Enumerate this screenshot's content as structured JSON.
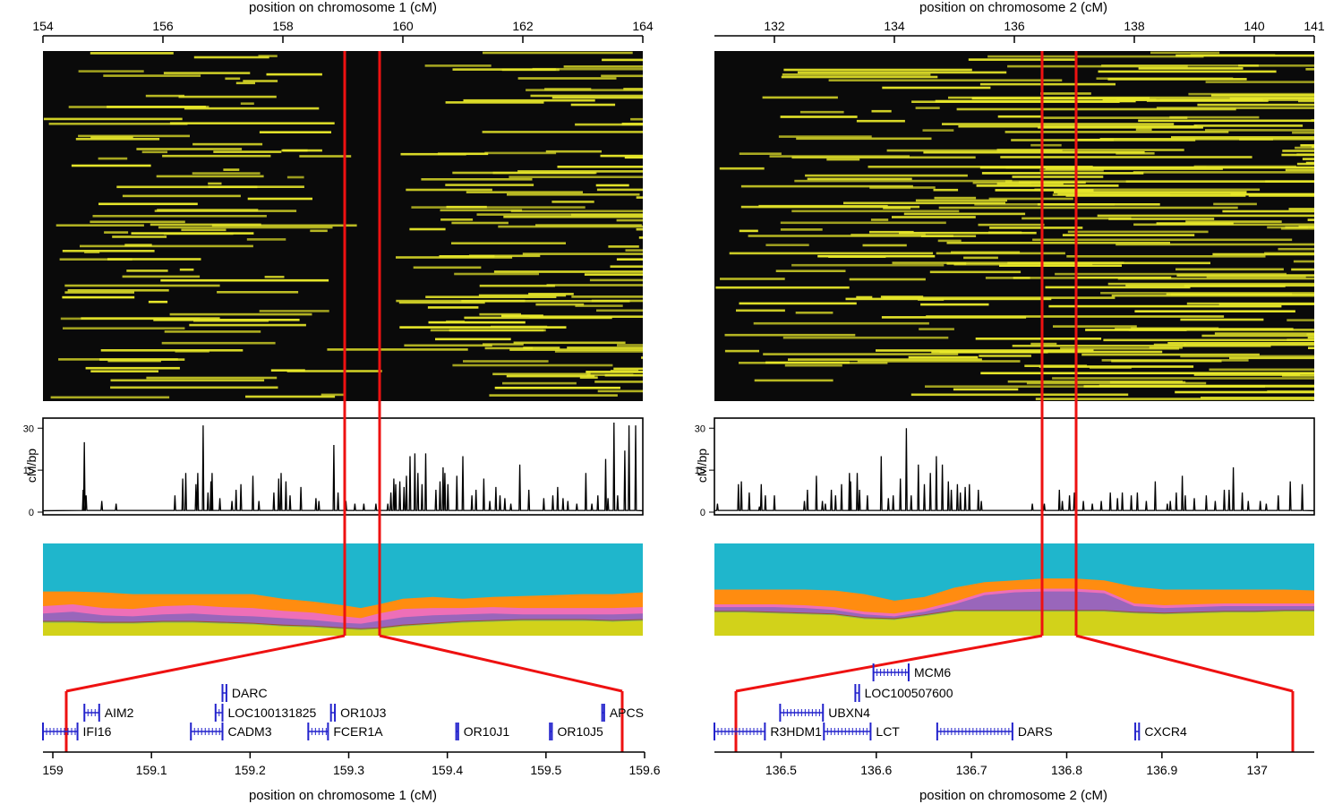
{
  "colors": {
    "heat_bg": "#0a0a0a",
    "heat_yellow": "#e8e82a",
    "density_line": "#000000",
    "zoom_line": "#ee1111",
    "gene": "#2222cc",
    "ancestry": [
      "#d2d21a",
      "#7fbf5a",
      "#a0522d",
      "#9966bb",
      "#ee6fb8",
      "#ff8c10",
      "#1fb6cc"
    ]
  },
  "chart_data": [
    {
      "type": "heatmap",
      "chromosome": 1,
      "top_axis": {
        "label": "position on chromosome 1 (cM)",
        "range": [
          154,
          164
        ],
        "ticks": [
          "154",
          "156",
          "158",
          "160",
          "162",
          "164"
        ]
      },
      "zoom_window_cM": [
        159.0,
        159.6
      ],
      "density": {
        "ylabel": "cM/bp",
        "yticks": [
          "0",
          "15",
          "30"
        ],
        "ylim": [
          0,
          32
        ],
        "peaks": [
          [
            154.67,
            8
          ],
          [
            154.69,
            25
          ],
          [
            154.72,
            6
          ],
          [
            154.98,
            4
          ],
          [
            155.22,
            3
          ],
          [
            156.2,
            6
          ],
          [
            156.33,
            12
          ],
          [
            156.38,
            14
          ],
          [
            156.55,
            10
          ],
          [
            156.58,
            14
          ],
          [
            156.67,
            31
          ],
          [
            156.75,
            7
          ],
          [
            156.8,
            11
          ],
          [
            156.82,
            14
          ],
          [
            156.95,
            5
          ],
          [
            157.15,
            4
          ],
          [
            157.22,
            8
          ],
          [
            157.3,
            10
          ],
          [
            157.5,
            13
          ],
          [
            157.6,
            4
          ],
          [
            157.85,
            7
          ],
          [
            157.93,
            12
          ],
          [
            157.97,
            14
          ],
          [
            158.05,
            11
          ],
          [
            158.12,
            6
          ],
          [
            158.3,
            9
          ],
          [
            158.55,
            5
          ],
          [
            158.6,
            4
          ],
          [
            158.85,
            24
          ],
          [
            158.92,
            7
          ],
          [
            159.05,
            4
          ],
          [
            159.2,
            3
          ],
          [
            159.35,
            3
          ],
          [
            159.55,
            3
          ],
          [
            159.75,
            3
          ],
          [
            159.8,
            7
          ],
          [
            159.85,
            12
          ],
          [
            159.88,
            10
          ],
          [
            159.95,
            11
          ],
          [
            160.02,
            9
          ],
          [
            160.06,
            13
          ],
          [
            160.12,
            20
          ],
          [
            160.2,
            21
          ],
          [
            160.25,
            14
          ],
          [
            160.32,
            10
          ],
          [
            160.38,
            21
          ],
          [
            160.55,
            8
          ],
          [
            160.62,
            11
          ],
          [
            160.67,
            16
          ],
          [
            160.7,
            14
          ],
          [
            160.75,
            10
          ],
          [
            160.9,
            13
          ],
          [
            161.0,
            20
          ],
          [
            161.15,
            6
          ],
          [
            161.22,
            8
          ],
          [
            161.35,
            12
          ],
          [
            161.45,
            4
          ],
          [
            161.55,
            9
          ],
          [
            161.62,
            6
          ],
          [
            161.7,
            5
          ],
          [
            161.8,
            3
          ],
          [
            161.95,
            17
          ],
          [
            162.1,
            8
          ],
          [
            162.35,
            5
          ],
          [
            162.5,
            6
          ],
          [
            162.58,
            9
          ],
          [
            162.67,
            5
          ],
          [
            162.75,
            4
          ],
          [
            162.9,
            3
          ],
          [
            163.05,
            14
          ],
          [
            163.15,
            3
          ],
          [
            163.25,
            6
          ],
          [
            163.38,
            19
          ],
          [
            163.42,
            5
          ],
          [
            163.52,
            32
          ],
          [
            163.58,
            6
          ],
          [
            163.7,
            22
          ],
          [
            163.77,
            31
          ],
          [
            163.88,
            31
          ]
        ]
      },
      "ancestry_boundaries": {
        "x": [
          154,
          154.5,
          155,
          155.5,
          156,
          156.5,
          157,
          157.5,
          158,
          158.5,
          159,
          159.3,
          159.6,
          160,
          160.5,
          161,
          161.5,
          162,
          162.5,
          163,
          163.5,
          164
        ],
        "layers": [
          [
            0.86,
            0.86,
            0.87,
            0.87,
            0.86,
            0.86,
            0.87,
            0.88,
            0.9,
            0.91,
            0.93,
            0.94,
            0.93,
            0.9,
            0.88,
            0.86,
            0.85,
            0.84,
            0.84,
            0.84,
            0.85,
            0.84
          ],
          [
            0.85,
            0.85,
            0.86,
            0.86,
            0.85,
            0.85,
            0.86,
            0.87,
            0.89,
            0.9,
            0.92,
            0.93,
            0.92,
            0.89,
            0.87,
            0.85,
            0.84,
            0.83,
            0.83,
            0.83,
            0.84,
            0.83
          ],
          [
            0.84,
            0.84,
            0.85,
            0.85,
            0.84,
            0.84,
            0.85,
            0.86,
            0.88,
            0.89,
            0.91,
            0.92,
            0.91,
            0.88,
            0.86,
            0.84,
            0.83,
            0.82,
            0.82,
            0.82,
            0.83,
            0.82
          ],
          [
            0.76,
            0.74,
            0.78,
            0.79,
            0.77,
            0.76,
            0.78,
            0.79,
            0.81,
            0.83,
            0.86,
            0.87,
            0.84,
            0.8,
            0.78,
            0.77,
            0.76,
            0.77,
            0.77,
            0.77,
            0.77,
            0.76
          ],
          [
            0.68,
            0.66,
            0.7,
            0.71,
            0.68,
            0.67,
            0.69,
            0.7,
            0.73,
            0.75,
            0.79,
            0.81,
            0.76,
            0.71,
            0.7,
            0.7,
            0.69,
            0.7,
            0.7,
            0.7,
            0.7,
            0.69
          ],
          [
            0.52,
            0.52,
            0.53,
            0.55,
            0.55,
            0.55,
            0.55,
            0.55,
            0.6,
            0.63,
            0.67,
            0.7,
            0.66,
            0.6,
            0.58,
            0.6,
            0.58,
            0.57,
            0.56,
            0.55,
            0.55,
            0.53
          ]
        ]
      },
      "genes": {
        "axis_label": "position on chromosome 1 (cM)",
        "range": [
          158.99,
          159.6
        ],
        "ticks": [
          "159",
          "159.1",
          "159.2",
          "159.3",
          "159.4",
          "159.5",
          "159.6"
        ],
        "items": [
          {
            "name": "DARC",
            "start": 159.172,
            "end": 159.176,
            "row": 0
          },
          {
            "name": "AIM2",
            "start": 159.032,
            "end": 159.047,
            "row": 1
          },
          {
            "name": "LOC100131825",
            "start": 159.165,
            "end": 159.172,
            "row": 1
          },
          {
            "name": "OR10J3",
            "start": 159.282,
            "end": 159.286,
            "row": 1
          },
          {
            "name": "APCS",
            "start": 159.557,
            "end": 159.559,
            "row": 1
          },
          {
            "name": "IFI16",
            "start": 158.99,
            "end": 159.025,
            "row": 2
          },
          {
            "name": "CADM3",
            "start": 159.14,
            "end": 159.172,
            "row": 2
          },
          {
            "name": "FCER1A",
            "start": 159.259,
            "end": 159.279,
            "row": 2
          },
          {
            "name": "OR10J1",
            "start": 159.409,
            "end": 159.411,
            "row": 2
          },
          {
            "name": "OR10J5",
            "start": 159.504,
            "end": 159.506,
            "row": 2
          }
        ]
      }
    },
    {
      "type": "heatmap",
      "chromosome": 2,
      "top_axis": {
        "label": "position on chromosome 2 (cM)",
        "range": [
          131,
          141
        ],
        "ticks": [
          "132",
          "134",
          "136",
          "138",
          "140",
          "141"
        ]
      },
      "zoom_window_cM": [
        136.45,
        137.0
      ],
      "density": {
        "ylabel": "cM/bp",
        "yticks": [
          "0",
          "15",
          "30"
        ],
        "ylim": [
          0,
          32
        ],
        "peaks": [
          [
            131.05,
            3
          ],
          [
            131.4,
            10
          ],
          [
            131.45,
            11
          ],
          [
            131.58,
            7
          ],
          [
            131.75,
            2
          ],
          [
            131.78,
            10
          ],
          [
            131.85,
            6
          ],
          [
            132.0,
            6
          ],
          [
            132.5,
            4
          ],
          [
            132.55,
            8
          ],
          [
            132.7,
            13
          ],
          [
            132.8,
            4
          ],
          [
            132.85,
            3
          ],
          [
            132.95,
            8
          ],
          [
            133.02,
            6
          ],
          [
            133.12,
            10
          ],
          [
            133.25,
            14
          ],
          [
            133.27,
            11
          ],
          [
            133.38,
            14
          ],
          [
            133.42,
            8
          ],
          [
            133.55,
            6
          ],
          [
            133.78,
            20
          ],
          [
            133.9,
            5
          ],
          [
            133.98,
            6
          ],
          [
            134.1,
            12
          ],
          [
            134.2,
            30
          ],
          [
            134.28,
            6
          ],
          [
            134.4,
            17
          ],
          [
            134.5,
            10
          ],
          [
            134.6,
            14
          ],
          [
            134.7,
            20
          ],
          [
            134.8,
            17
          ],
          [
            134.9,
            11
          ],
          [
            134.95,
            8
          ],
          [
            135.05,
            10
          ],
          [
            135.1,
            7
          ],
          [
            135.18,
            9
          ],
          [
            135.25,
            10
          ],
          [
            135.4,
            8
          ],
          [
            135.45,
            4
          ],
          [
            136.3,
            3
          ],
          [
            136.5,
            3
          ],
          [
            136.75,
            8
          ],
          [
            136.8,
            4
          ],
          [
            136.92,
            6
          ],
          [
            137.0,
            7
          ],
          [
            137.15,
            4
          ],
          [
            137.3,
            3
          ],
          [
            137.45,
            4
          ],
          [
            137.6,
            7
          ],
          [
            137.72,
            5
          ],
          [
            137.8,
            7
          ],
          [
            137.95,
            6
          ],
          [
            138.05,
            7
          ],
          [
            138.2,
            4
          ],
          [
            138.35,
            11
          ],
          [
            138.55,
            3
          ],
          [
            138.6,
            4
          ],
          [
            138.7,
            7
          ],
          [
            138.8,
            13
          ],
          [
            138.85,
            6
          ],
          [
            139.0,
            5
          ],
          [
            139.2,
            6
          ],
          [
            139.35,
            4
          ],
          [
            139.5,
            8
          ],
          [
            139.58,
            8
          ],
          [
            139.65,
            16
          ],
          [
            139.8,
            7
          ],
          [
            139.9,
            4
          ],
          [
            140.1,
            4
          ],
          [
            140.2,
            3
          ],
          [
            140.4,
            6
          ],
          [
            140.6,
            11
          ],
          [
            140.8,
            10
          ]
        ]
      },
      "ancestry_boundaries": {
        "x": [
          131,
          131.5,
          132,
          132.5,
          133,
          133.5,
          134,
          134.5,
          135,
          135.5,
          136,
          136.5,
          137,
          137.5,
          138,
          138.5,
          139,
          139.5,
          140,
          140.5,
          141
        ],
        "layers": [
          [
            0.75,
            0.75,
            0.76,
            0.77,
            0.78,
            0.82,
            0.83,
            0.79,
            0.74,
            0.74,
            0.74,
            0.74,
            0.74,
            0.74,
            0.76,
            0.77,
            0.76,
            0.75,
            0.75,
            0.74,
            0.74
          ],
          [
            0.74,
            0.74,
            0.75,
            0.76,
            0.77,
            0.81,
            0.82,
            0.78,
            0.73,
            0.73,
            0.73,
            0.73,
            0.73,
            0.73,
            0.75,
            0.76,
            0.75,
            0.74,
            0.74,
            0.73,
            0.73
          ],
          [
            0.73,
            0.73,
            0.74,
            0.75,
            0.76,
            0.8,
            0.81,
            0.77,
            0.72,
            0.72,
            0.72,
            0.72,
            0.72,
            0.72,
            0.74,
            0.75,
            0.74,
            0.73,
            0.73,
            0.72,
            0.72
          ],
          [
            0.69,
            0.69,
            0.69,
            0.7,
            0.72,
            0.77,
            0.79,
            0.74,
            0.66,
            0.56,
            0.53,
            0.52,
            0.52,
            0.54,
            0.68,
            0.7,
            0.69,
            0.68,
            0.68,
            0.68,
            0.68
          ],
          [
            0.66,
            0.66,
            0.66,
            0.67,
            0.69,
            0.74,
            0.76,
            0.71,
            0.63,
            0.53,
            0.5,
            0.49,
            0.49,
            0.51,
            0.65,
            0.67,
            0.66,
            0.65,
            0.65,
            0.65,
            0.65
          ],
          [
            0.5,
            0.5,
            0.5,
            0.5,
            0.51,
            0.55,
            0.62,
            0.58,
            0.48,
            0.42,
            0.4,
            0.38,
            0.38,
            0.4,
            0.47,
            0.5,
            0.5,
            0.5,
            0.5,
            0.5,
            0.51
          ]
        ]
      },
      "genes": {
        "axis_label": "position on chromosome 2 (cM)",
        "range": [
          136.43,
          137.06
        ],
        "ticks": [
          "136.5",
          "136.6",
          "136.7",
          "136.8",
          "136.9",
          "137"
        ],
        "items": [
          {
            "name": "MCM6",
            "start": 136.597,
            "end": 136.634,
            "row": 0
          },
          {
            "name": "LOC100507600",
            "start": 136.578,
            "end": 136.582,
            "row": 1
          },
          {
            "name": "UBXN4",
            "start": 136.499,
            "end": 136.544,
            "row": 2
          },
          {
            "name": "R3HDM1",
            "start": 136.43,
            "end": 136.483,
            "row": 3
          },
          {
            "name": "LCT",
            "start": 136.545,
            "end": 136.594,
            "row": 3
          },
          {
            "name": "DARS",
            "start": 136.664,
            "end": 136.743,
            "row": 3
          },
          {
            "name": "CXCR4",
            "start": 136.872,
            "end": 136.876,
            "row": 3
          }
        ]
      }
    }
  ]
}
